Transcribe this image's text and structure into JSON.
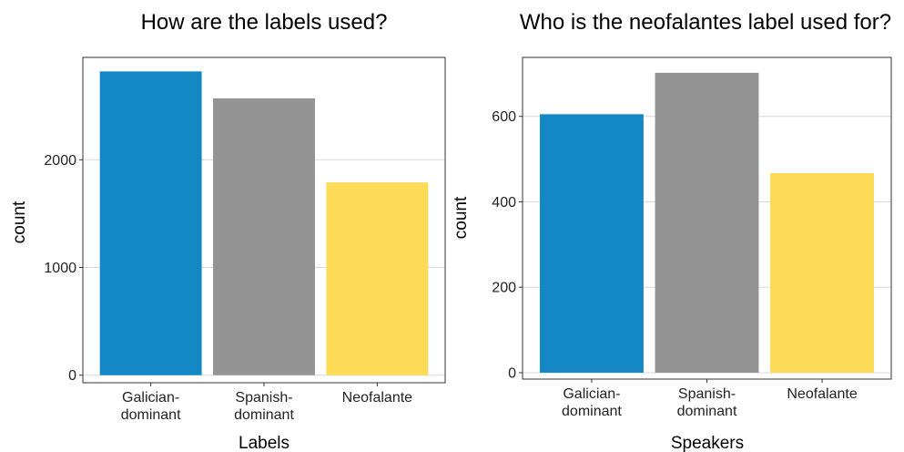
{
  "chart_data": [
    {
      "type": "bar",
      "title": "How are the labels used?",
      "xlabel": "Labels",
      "ylabel": "count",
      "categories": [
        "Galician-dominant",
        "Spanish-dominant",
        "Neofalante"
      ],
      "category_labels": [
        [
          "Galician-",
          "dominant"
        ],
        [
          "Spanish-",
          "dominant"
        ],
        [
          "Neofalante"
        ]
      ],
      "values": [
        2820,
        2570,
        1790
      ],
      "colors": [
        "#1487c5",
        "#949494",
        "#fddb57"
      ],
      "yticks": [
        0,
        1000,
        2000
      ],
      "ylim": [
        -70,
        2950
      ],
      "grid": true,
      "legend": "none"
    },
    {
      "type": "bar",
      "title": "Who is the neofalantes label used for?",
      "xlabel": "Speakers",
      "ylabel": "count",
      "categories": [
        "Galician-dominant",
        "Spanish-dominant",
        "Neofalante"
      ],
      "category_labels": [
        [
          "Galician-",
          "dominant"
        ],
        [
          "Spanish-",
          "dominant"
        ],
        [
          "Neofalante"
        ]
      ],
      "values": [
        605,
        702,
        467
      ],
      "colors": [
        "#1487c5",
        "#949494",
        "#fddb57"
      ],
      "yticks": [
        0,
        200,
        400,
        600
      ],
      "ylim": [
        -15,
        738
      ],
      "grid": true,
      "legend": "none"
    }
  ]
}
